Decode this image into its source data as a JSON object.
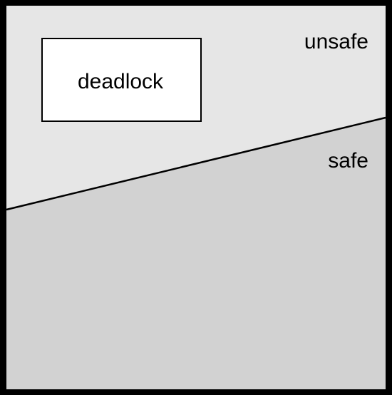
{
  "diagram": {
    "regions": {
      "unsafe": {
        "label": "unsafe"
      },
      "safe": {
        "label": "safe"
      },
      "deadlock": {
        "label": "deadlock"
      }
    },
    "colors": {
      "frame": "#000000",
      "unsafe_fill": "#e6e6e6",
      "safe_fill": "#d2d2d2",
      "deadlock_fill": "#ffffff",
      "boundary_line": "#000000",
      "text": "#000000"
    }
  }
}
